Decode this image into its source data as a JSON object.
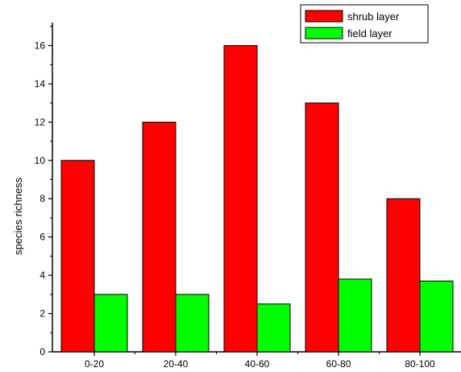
{
  "chart_data": {
    "type": "bar",
    "categories": [
      "0-20",
      "20-40",
      "40-60",
      "60-80",
      "80-100"
    ],
    "series": [
      {
        "name": "shrub layer",
        "color": "#ff0000",
        "values": [
          10,
          12,
          16,
          13,
          8
        ]
      },
      {
        "name": "field layer",
        "color": "#00ff00",
        "values": [
          3,
          3,
          2.5,
          3.8,
          3.7
        ]
      }
    ],
    "title": "",
    "xlabel": "",
    "ylabel": "species richness",
    "ylim": [
      0,
      17.2
    ],
    "yticks": [
      0,
      2,
      4,
      6,
      8,
      10,
      12,
      14,
      16
    ],
    "grid": false,
    "legend_position": "top-right"
  }
}
